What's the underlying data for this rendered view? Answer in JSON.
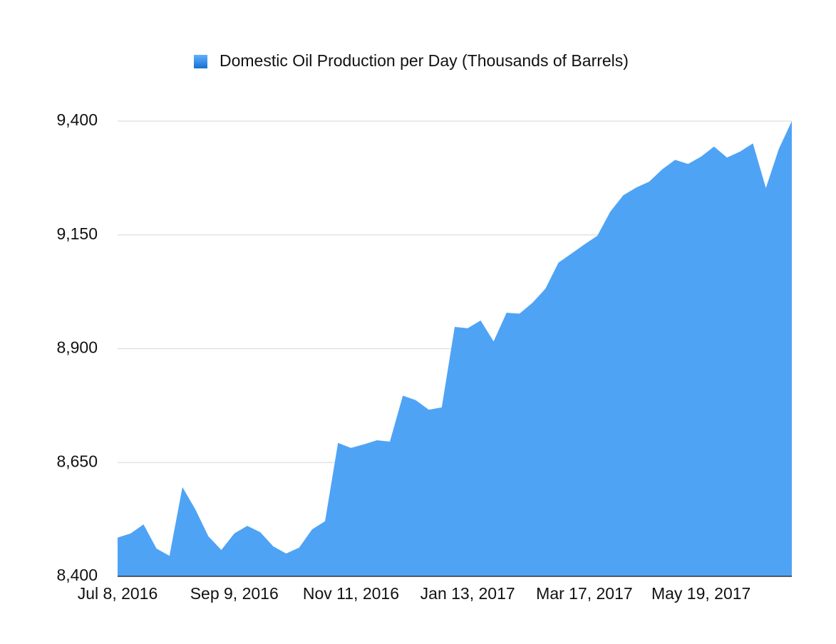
{
  "chart_data": {
    "type": "area",
    "categories": [
      "Jul 8, 2016",
      null,
      null,
      null,
      null,
      null,
      null,
      null,
      null,
      "Sep 9, 2016",
      null,
      null,
      null,
      null,
      null,
      null,
      null,
      null,
      "Nov 11, 2016",
      null,
      null,
      null,
      null,
      null,
      null,
      null,
      null,
      "Jan 13, 2017",
      null,
      null,
      null,
      null,
      null,
      null,
      null,
      null,
      "Mar 17, 2017",
      null,
      null,
      null,
      null,
      null,
      null,
      null,
      null,
      "May 19, 2017",
      null,
      null,
      null,
      null,
      null,
      null,
      null
    ],
    "series": [
      {
        "name": "Domestic Oil Production per Day (Thousands of Barrels)",
        "color": "#4fa3f5",
        "values": [
          8485,
          8494,
          8514,
          8461,
          8445,
          8596,
          8547,
          8488,
          8458,
          8494,
          8511,
          8497,
          8466,
          8450,
          8463,
          8503,
          8521,
          8693,
          8682,
          8690,
          8699,
          8696,
          8797,
          8787,
          8766,
          8771,
          8948,
          8945,
          8962,
          8916,
          8979,
          8977,
          9001,
          9032,
          9089,
          9109,
          9129,
          9148,
          9201,
          9237,
          9254,
          9267,
          9294,
          9315,
          9306,
          9322,
          9344,
          9320,
          9333,
          9351,
          9253,
          9339,
          9400
        ]
      }
    ],
    "ylim": [
      8400,
      9400
    ],
    "yticks": [
      {
        "value": 8400,
        "label": "8,400"
      },
      {
        "value": 8650,
        "label": "8,650"
      },
      {
        "value": 8900,
        "label": "8,900"
      },
      {
        "value": 9150,
        "label": "9,150"
      },
      {
        "value": 9400,
        "label": "9,400"
      }
    ],
    "grid": true,
    "legend": "top"
  }
}
